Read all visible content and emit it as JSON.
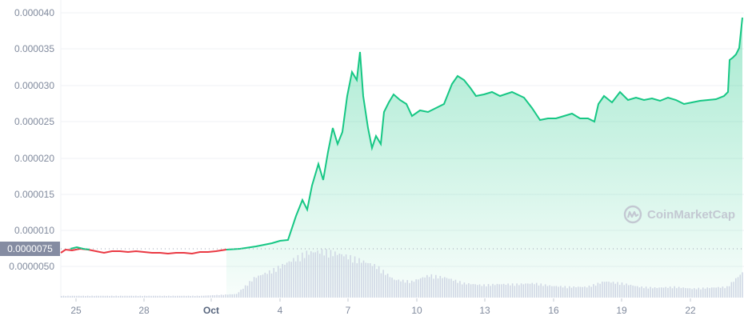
{
  "chart_data": {
    "type": "line",
    "title": "",
    "xlabel": "",
    "ylabel": "",
    "ylim": [
      3.5e-06,
      4.05e-05
    ],
    "y_ticks": [
      "0.000040",
      "0.000035",
      "0.000030",
      "0.000025",
      "0.000020",
      "0.000015",
      "0.000010",
      "0.0000050"
    ],
    "x_ticks": [
      "25",
      "28",
      "Oct",
      "4",
      "7",
      "10",
      "13",
      "16",
      "19",
      "22"
    ],
    "current_price_label": "0.0000075",
    "series": [
      {
        "name": "Price",
        "color_up": "#16c784",
        "color_down": "#ea3943",
        "points": [
          [
            "Sep 24",
            6.9e-06
          ],
          [
            "Sep 25",
            7.4e-06
          ],
          [
            "Sep 26",
            7.3e-06
          ],
          [
            "Sep 27",
            7.1e-06
          ],
          [
            "Sep 28",
            7.1e-06
          ],
          [
            "Sep 29",
            7e-06
          ],
          [
            "Sep 30",
            7.1e-06
          ],
          [
            "Oct 1",
            7.4e-06
          ],
          [
            "Oct 2",
            7.5e-06
          ],
          [
            "Oct 3",
            7.9e-06
          ],
          [
            "Oct 4",
            8.2e-06
          ],
          [
            "Oct 5",
            1.4e-05
          ],
          [
            "Oct 5.5",
            1.9e-05
          ],
          [
            "Oct 6",
            1.8e-05
          ],
          [
            "Oct 6.5",
            2.4e-05
          ],
          [
            "Oct 7",
            2.6e-05
          ],
          [
            "Oct 7.2",
            3.2e-05
          ],
          [
            "Oct 7.5",
            3.5e-05
          ],
          [
            "Oct 7.8",
            2.7e-05
          ],
          [
            "Oct 8",
            2.2e-05
          ],
          [
            "Oct 8.5",
            2.4e-05
          ],
          [
            "Oct 9",
            2.9e-05
          ],
          [
            "Oct 10",
            2.7e-05
          ],
          [
            "Oct 11",
            2.8e-05
          ],
          [
            "Oct 12",
            3.1e-05
          ],
          [
            "Oct 13",
            2.9e-05
          ],
          [
            "Oct 14",
            2.9e-05
          ],
          [
            "Oct 15",
            2.7e-05
          ],
          [
            "Oct 16",
            2.6e-05
          ],
          [
            "Oct 17",
            2.6e-05
          ],
          [
            "Oct 18",
            2.5e-05
          ],
          [
            "Oct 18.5",
            2.8e-05
          ],
          [
            "Oct 19",
            2.9e-05
          ],
          [
            "Oct 20",
            2.8e-05
          ],
          [
            "Oct 21",
            2.8e-05
          ],
          [
            "Oct 22",
            2.8e-05
          ],
          [
            "Oct 23",
            2.8e-05
          ],
          [
            "Oct 24",
            2.9e-05
          ],
          [
            "Oct 24.3",
            3.5e-05
          ],
          [
            "Oct 24.7",
            4e-05
          ]
        ]
      },
      {
        "name": "Volume",
        "color": "#cfd6e4",
        "relative_values": [
          2,
          2,
          2,
          2,
          2,
          2,
          2,
          2,
          2,
          3,
          4,
          22,
          30,
          40,
          50,
          52,
          48,
          42,
          35,
          20,
          18,
          25,
          22,
          16,
          14,
          15,
          15,
          16,
          13,
          12,
          12,
          18,
          16,
          12,
          11,
          12,
          10,
          11,
          12,
          30
        ]
      }
    ]
  },
  "watermark": {
    "text": "CoinMarketCap"
  }
}
